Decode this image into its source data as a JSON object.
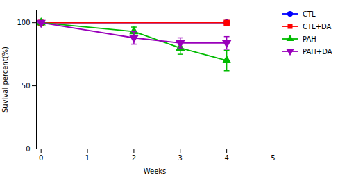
{
  "chart_data": {
    "type": "line",
    "xlabel": "Weeks",
    "ylabel": "Suvival percent(%)",
    "xlim": [
      -0.1,
      5
    ],
    "ylim": [
      0,
      110
    ],
    "xticks": [
      0,
      1,
      2,
      3,
      4,
      5
    ],
    "yticks": [
      0,
      50,
      100
    ],
    "grid": false,
    "legend": "right",
    "series": [
      {
        "name": "CTL",
        "color": "#0000FF",
        "marker": "circle",
        "line_style": "solid",
        "x": [
          0,
          4
        ],
        "values": [
          100,
          100
        ],
        "yerr": [
          null,
          null
        ]
      },
      {
        "name": "CTL+DA",
        "color": "#FF0000",
        "marker": "square",
        "line_style": "solid",
        "x": [
          0,
          4
        ],
        "values": [
          100,
          100
        ],
        "yerr": [
          null,
          null
        ]
      },
      {
        "name": "PAH",
        "color": "#00BB00",
        "marker": "triangle-up",
        "line_style": "solid",
        "x": [
          0,
          2,
          3,
          4
        ],
        "values": [
          100,
          93,
          80,
          70
        ],
        "yerr": [
          0,
          3.5,
          5,
          8
        ]
      },
      {
        "name": "PAH+DA",
        "color": "#9900BB",
        "marker": "triangle-down",
        "line_style": "solid",
        "x": [
          0,
          2,
          3,
          4
        ],
        "values": [
          100,
          88,
          84,
          84
        ],
        "yerr": [
          0,
          5,
          4,
          5
        ]
      }
    ]
  }
}
